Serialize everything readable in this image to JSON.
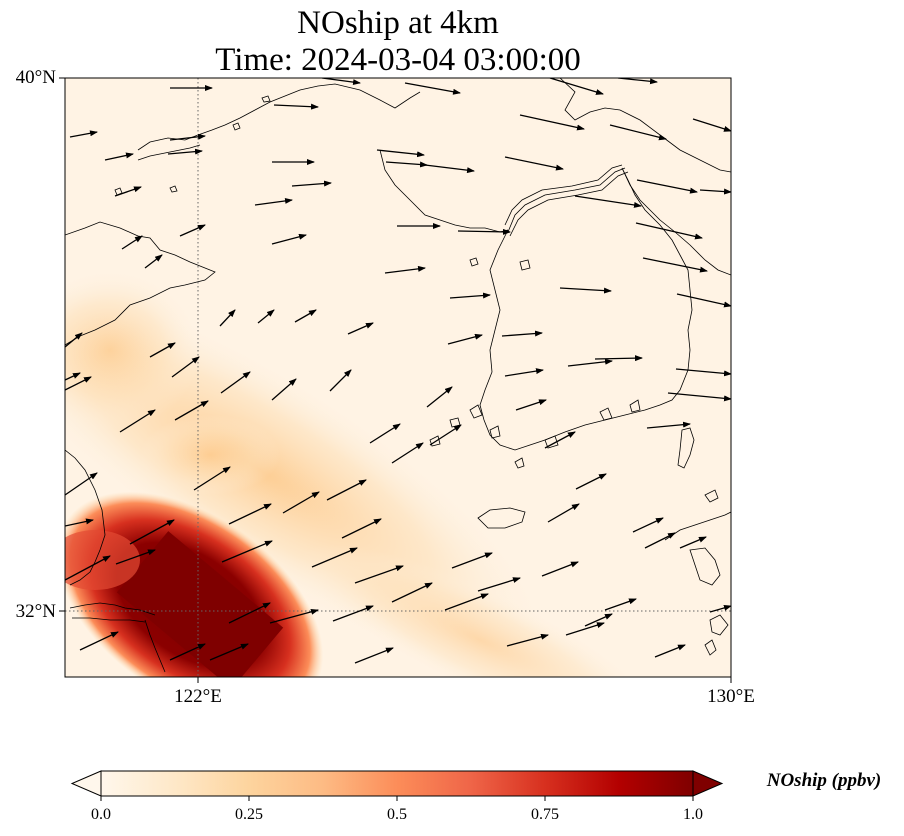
{
  "title": {
    "line1": "NOship at 4km",
    "line2": "Time: 2024-03-04 03:00:00"
  },
  "map": {
    "lon_range": [
      120,
      130
    ],
    "lat_range": [
      31,
      40
    ],
    "lat_ticks": [
      {
        "value": 40,
        "label": "40°N"
      },
      {
        "value": 32,
        "label": "32°N"
      }
    ],
    "lon_ticks": [
      {
        "value": 122,
        "label": "122°E"
      },
      {
        "value": 130,
        "label": "130°E"
      }
    ],
    "gridlines": true
  },
  "colorbar": {
    "label": "NOship (ppbv)",
    "colormap": "OrRd",
    "range": [
      0.0,
      1.0
    ],
    "extend": "both",
    "ticks": [
      {
        "value": 0.0,
        "label": "0.0"
      },
      {
        "value": 0.25,
        "label": "0.25"
      },
      {
        "value": 0.5,
        "label": "0.5"
      },
      {
        "value": 0.75,
        "label": "0.75"
      },
      {
        "value": 1.0,
        "label": "1.0"
      }
    ]
  },
  "wind": {
    "direction": "predominantly from the west-southwest"
  }
}
